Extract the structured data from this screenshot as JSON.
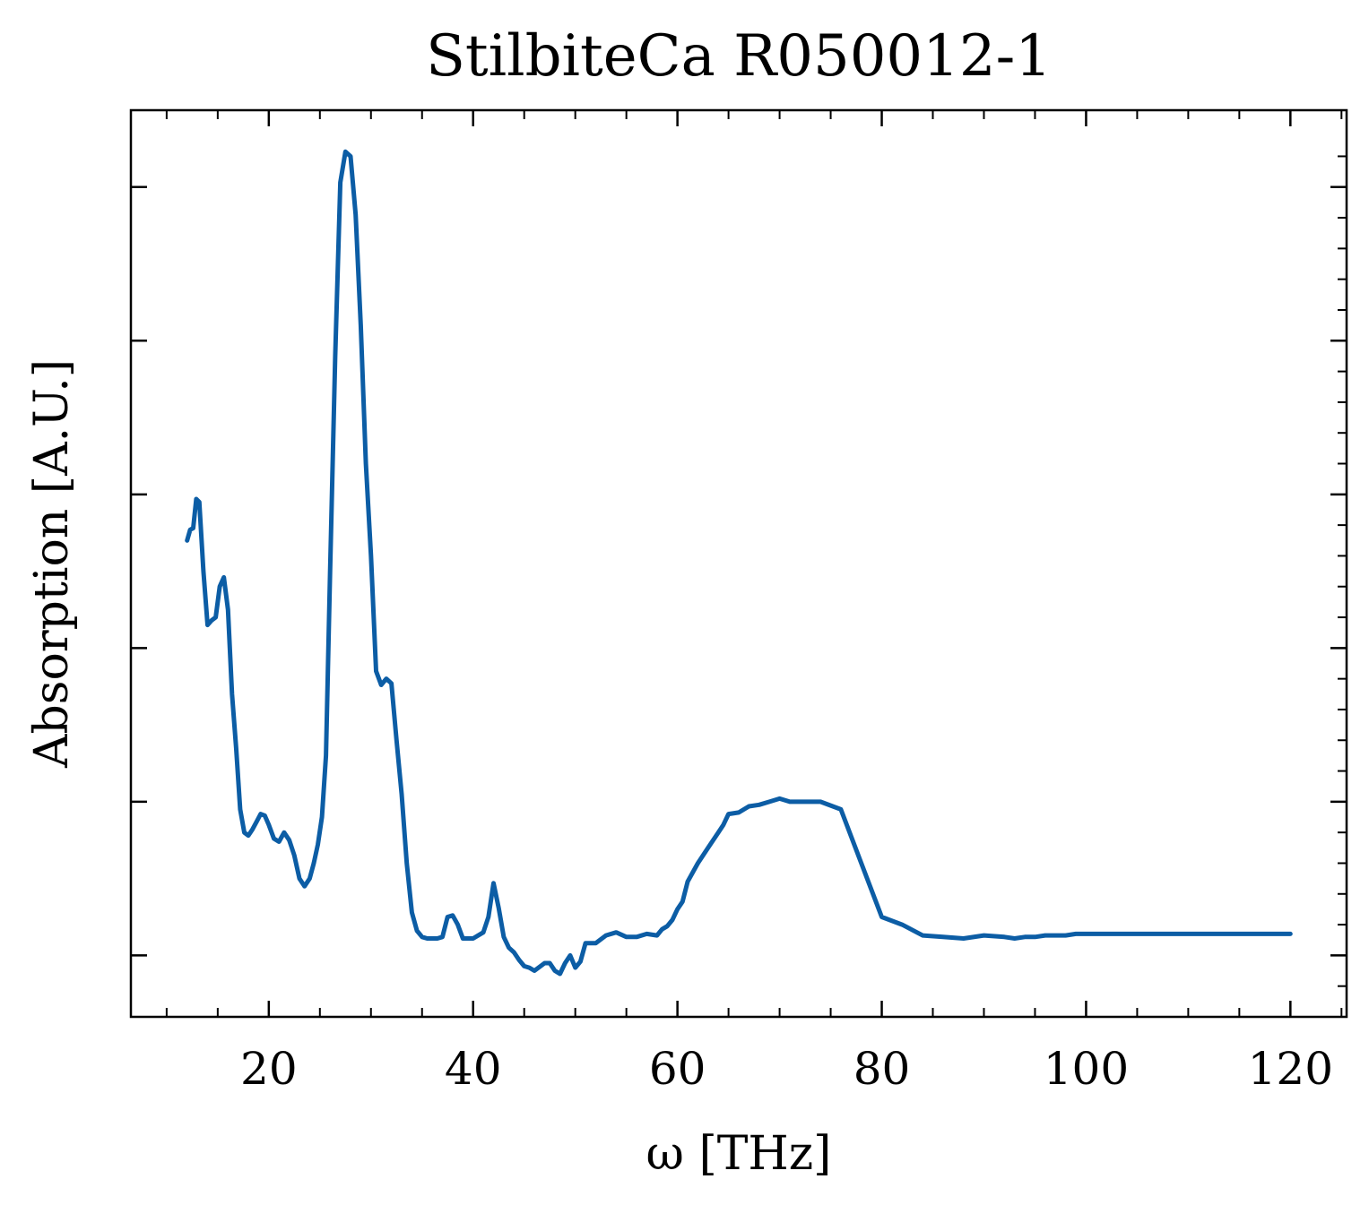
{
  "chart_data": {
    "type": "line",
    "title": "StilbiteCa R050012-1",
    "xlabel": "ω [THz]",
    "ylabel": "Absorption [A.U.]",
    "xlim": [
      6.5,
      125.5
    ],
    "ylim": [
      -0.4,
      5.5
    ],
    "x_ticks": [
      20,
      40,
      60,
      80,
      100,
      120
    ],
    "x_tick_labels": [
      "20",
      "40",
      "60",
      "80",
      "100",
      "120"
    ],
    "y_ticks": [
      0,
      1,
      2,
      3,
      4,
      5
    ],
    "y_tick_labels_shown": false,
    "grid": false,
    "line_color": "#0C5DA5",
    "series": [
      {
        "x": [
          12.0,
          12.3,
          12.6,
          12.9,
          13.2,
          13.6,
          14.0,
          14.4,
          14.8,
          15.2,
          15.6,
          16.0,
          16.4,
          16.8,
          17.2,
          17.6,
          18.0,
          18.4,
          18.8,
          19.2,
          19.6,
          20.0,
          20.5,
          21.0,
          21.5,
          22.0,
          22.5,
          23.0,
          23.5,
          24.0,
          24.4,
          24.8,
          25.2,
          25.6,
          26.0,
          26.5,
          27.0,
          27.5,
          28.0,
          28.5,
          29.0,
          29.5,
          30.0,
          30.5,
          31.0,
          31.5,
          32.0,
          32.5,
          33.0,
          33.5,
          34.0,
          34.5,
          35.0,
          35.5,
          36.0,
          36.5,
          37.0,
          37.5,
          38.0,
          38.5,
          39.0,
          40.0,
          41.0,
          41.5,
          42.0,
          42.5,
          43.0,
          43.5,
          44.0,
          44.5,
          45.0,
          45.5,
          46.0,
          47.0,
          47.5,
          48.0,
          48.5,
          49.0,
          49.5,
          50.0,
          50.5,
          51.0,
          52.0,
          53.0,
          54.0,
          55.0,
          56.0,
          57.0,
          58.0,
          58.5,
          59.0,
          59.5,
          60.0,
          60.5,
          61.0,
          62.0,
          63.0,
          64.0,
          64.5,
          65.0,
          66.0,
          67.0,
          68.0,
          69.0,
          70.0,
          71.0,
          72.0,
          74.0,
          76.0,
          78.0,
          80.0,
          82.0,
          84.0,
          86.0,
          88.0,
          90.0,
          92.0,
          93.0,
          94.0,
          95.0,
          96.0,
          97.0,
          98.0,
          99.0,
          100.0,
          101.0,
          102.0,
          103.0,
          104.0,
          105.0,
          106.0,
          107.0,
          107.5,
          108.0,
          108.5,
          109.0,
          109.5,
          110.0,
          111.0,
          112.0,
          113.0,
          114.0,
          115.0,
          116.0,
          117.0,
          118.0,
          119.0,
          120.0
        ],
        "y": [
          2.7,
          2.77,
          2.78,
          2.97,
          2.95,
          2.5,
          2.15,
          2.18,
          2.2,
          2.4,
          2.46,
          2.25,
          1.7,
          1.35,
          0.95,
          0.8,
          0.78,
          0.82,
          0.87,
          0.92,
          0.91,
          0.85,
          0.76,
          0.74,
          0.8,
          0.75,
          0.65,
          0.5,
          0.45,
          0.5,
          0.6,
          0.72,
          0.9,
          1.3,
          2.5,
          3.9,
          5.03,
          5.23,
          5.2,
          4.82,
          4.1,
          3.2,
          2.6,
          1.85,
          1.76,
          1.8,
          1.77,
          1.4,
          1.05,
          0.6,
          0.28,
          0.16,
          0.12,
          0.11,
          0.11,
          0.11,
          0.12,
          0.25,
          0.26,
          0.2,
          0.11,
          0.11,
          0.15,
          0.25,
          0.47,
          0.31,
          0.12,
          0.05,
          0.02,
          -0.03,
          -0.07,
          -0.08,
          -0.1,
          -0.05,
          -0.05,
          -0.1,
          -0.12,
          -0.05,
          0.0,
          -0.08,
          -0.04,
          0.08,
          0.08,
          0.13,
          0.15,
          0.12,
          0.12,
          0.14,
          0.13,
          0.17,
          0.19,
          0.23,
          0.3,
          0.35,
          0.48,
          0.6,
          0.7,
          0.8,
          0.85,
          0.92,
          0.93,
          0.97,
          0.98,
          1.0,
          1.02,
          1.0,
          1.0,
          1.0,
          0.95,
          0.6,
          0.25,
          0.2,
          0.13,
          0.12,
          0.11,
          0.13,
          0.12,
          0.11,
          0.12,
          0.12,
          0.13,
          0.13,
          0.13,
          0.14,
          0.14,
          0.14,
          0.14,
          0.14,
          0.14,
          0.14,
          0.14,
          0.14,
          0.14,
          0.14,
          0.14,
          0.14,
          0.14,
          0.14,
          0.14,
          0.14,
          0.14,
          0.14,
          0.14,
          0.14,
          0.14,
          0.14,
          0.14,
          0.14
        ]
      }
    ]
  }
}
